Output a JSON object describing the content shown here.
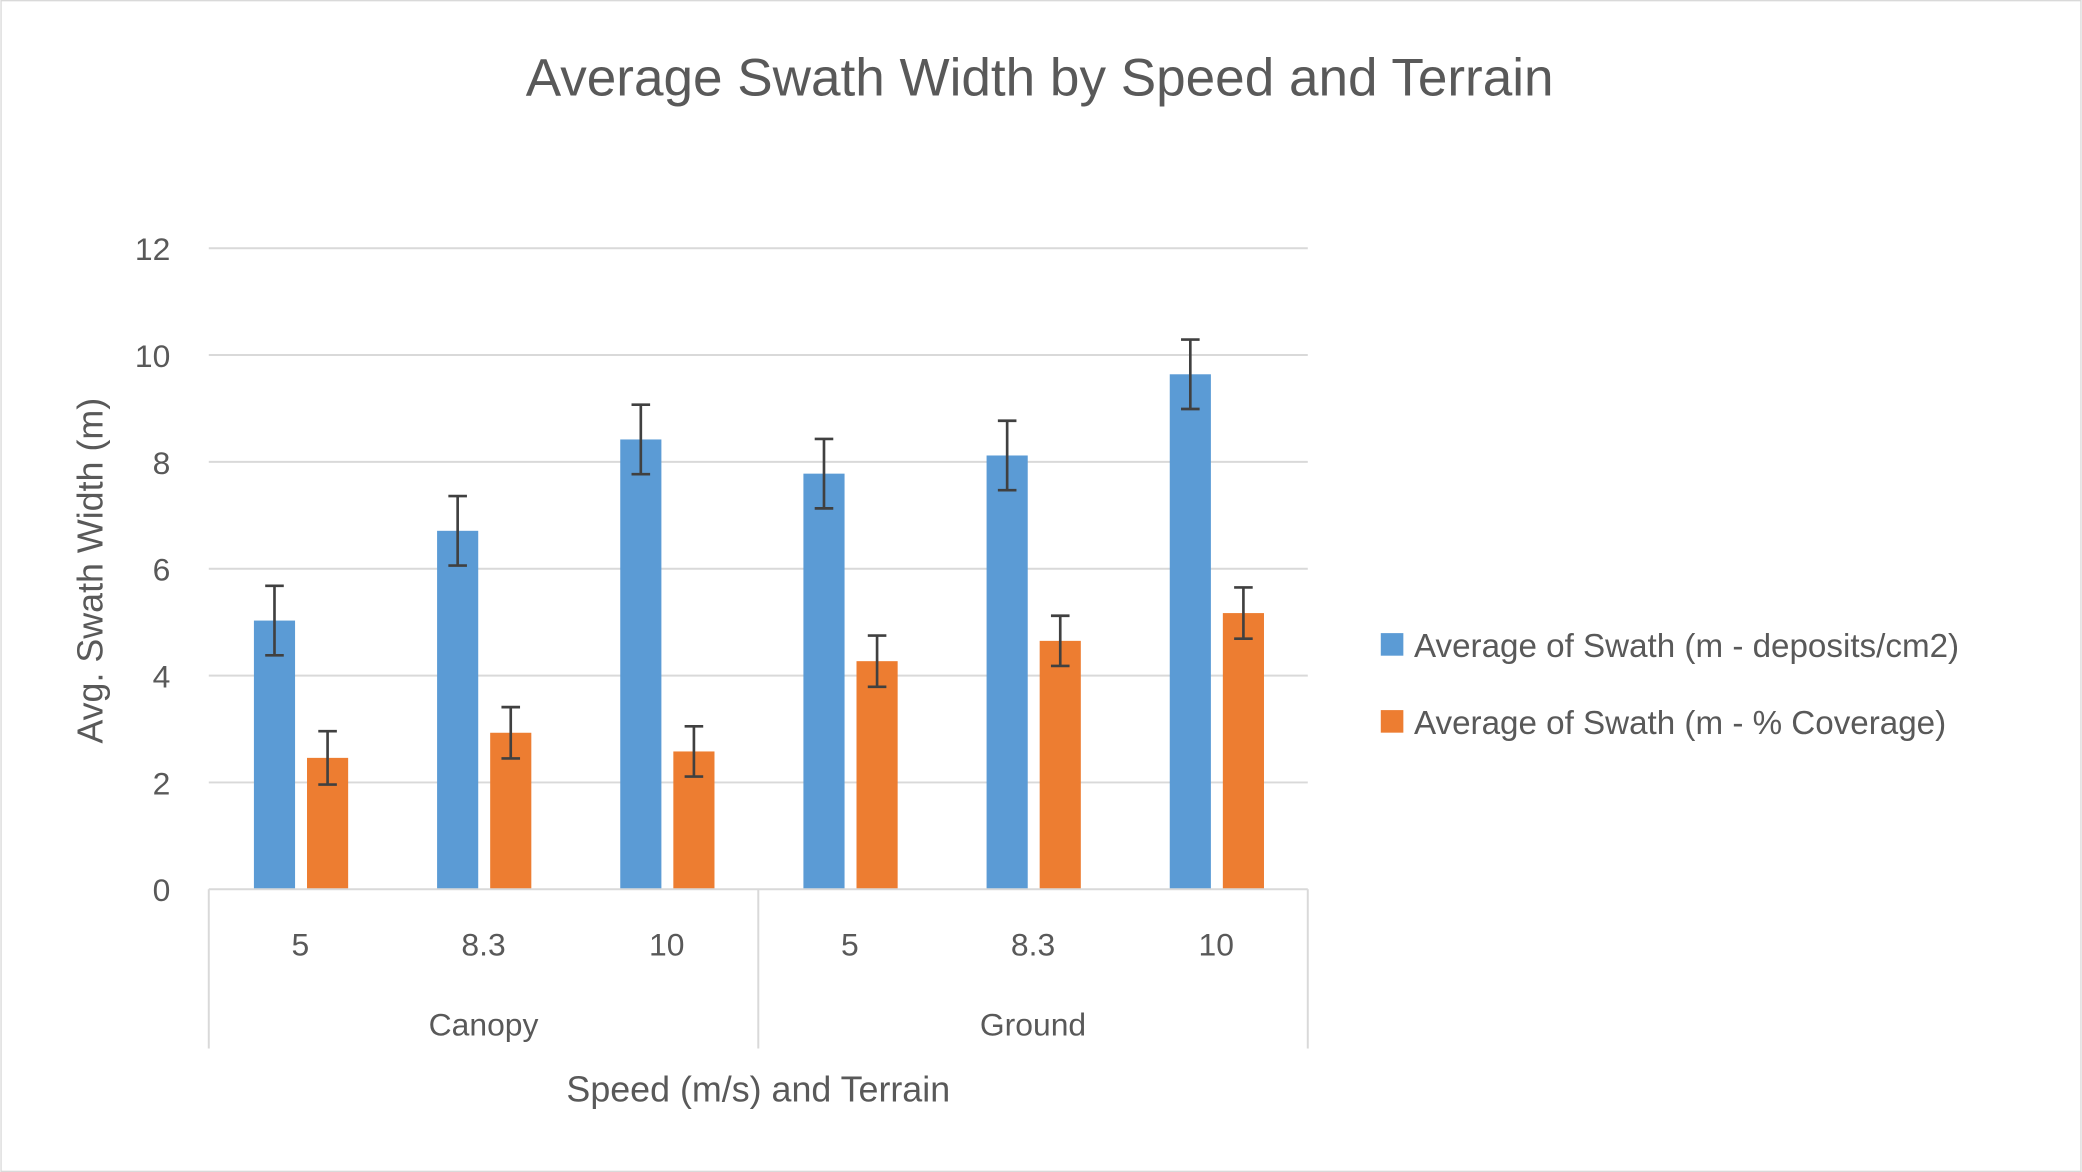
{
  "chart_data": {
    "type": "bar",
    "title": "Average Swath Width by Speed and Terrain",
    "xlabel": "Speed (m/s) and Terrain",
    "ylabel": "Avg. Swath Width (m)",
    "ylim": [
      0,
      12
    ],
    "yticks": [
      "0",
      "2",
      "4",
      "6",
      "8",
      "10",
      "12"
    ],
    "grid": true,
    "legend_position": "right",
    "categories": [
      "5",
      "8.3",
      "10",
      "5",
      "8.3",
      "10"
    ],
    "groups": [
      {
        "label": "Canopy",
        "categories": [
          0,
          1,
          2
        ]
      },
      {
        "label": "Ground",
        "categories": [
          3,
          4,
          5
        ]
      }
    ],
    "series": [
      {
        "name": "Average of Swath (m - deposits/cm2)",
        "color": "#5B9BD5",
        "values": [
          5.03,
          6.71,
          8.42,
          7.78,
          8.12,
          9.64
        ],
        "errors": [
          0.65,
          0.65,
          0.65,
          0.65,
          0.65,
          0.65
        ]
      },
      {
        "name": "Average of Swath (m - % Coverage)",
        "color": "#ED7D31",
        "values": [
          2.46,
          2.93,
          2.58,
          4.27,
          4.65,
          5.17
        ],
        "errors": [
          0.5,
          0.48,
          0.47,
          0.48,
          0.47,
          0.48
        ]
      }
    ]
  }
}
